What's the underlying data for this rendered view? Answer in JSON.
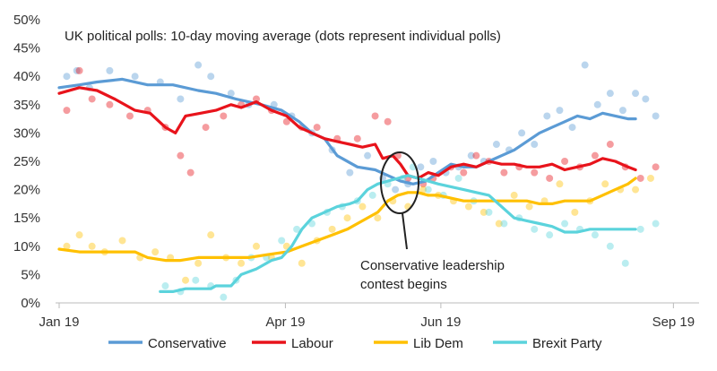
{
  "chart_data": {
    "type": "line",
    "title": "UK political polls: 10-day moving average (dots represent individual polls)",
    "xlabel": "",
    "ylabel": "",
    "x_ticks": [
      "Jan 19",
      "Apr 19",
      "Jun 19",
      "Sep 19"
    ],
    "y_ticks": [
      "0%",
      "5%",
      "10%",
      "15%",
      "20%",
      "25%",
      "30%",
      "35%",
      "40%",
      "45%",
      "50%"
    ],
    "ylim": [
      0,
      50
    ],
    "xlim": [
      0,
      245
    ],
    "grid": false,
    "legend_position": "bottom",
    "annotation": {
      "lines": [
        "Conservative leadership",
        "contest begins"
      ],
      "day": 142,
      "value": 21.5
    },
    "series": [
      {
        "name": "Conservative",
        "color": "#5b9bd5",
        "points": [
          [
            0,
            38
          ],
          [
            8,
            38.5
          ],
          [
            15,
            39
          ],
          [
            25,
            39.5
          ],
          [
            35,
            38.5
          ],
          [
            45,
            38.5
          ],
          [
            55,
            37.5
          ],
          [
            62,
            37
          ],
          [
            70,
            36
          ],
          [
            80,
            35
          ],
          [
            88,
            34
          ],
          [
            95,
            32
          ],
          [
            100,
            30
          ],
          [
            105,
            29
          ],
          [
            110,
            26
          ],
          [
            118,
            24
          ],
          [
            125,
            23.5
          ],
          [
            130,
            22.5
          ],
          [
            135,
            21.5
          ],
          [
            140,
            21
          ],
          [
            145,
            21.5
          ],
          [
            150,
            23
          ],
          [
            155,
            24.5
          ],
          [
            160,
            24
          ],
          [
            165,
            24
          ],
          [
            170,
            25
          ],
          [
            175,
            26
          ],
          [
            180,
            27
          ],
          [
            185,
            28.5
          ],
          [
            190,
            30
          ],
          [
            195,
            31
          ],
          [
            200,
            32
          ],
          [
            205,
            33
          ],
          [
            210,
            32.5
          ],
          [
            215,
            33.5
          ],
          [
            220,
            33
          ],
          [
            225,
            32.5
          ],
          [
            228,
            32.5
          ]
        ],
        "dots": [
          [
            3,
            40
          ],
          [
            7,
            41
          ],
          [
            12,
            38
          ],
          [
            20,
            41
          ],
          [
            30,
            40
          ],
          [
            40,
            39
          ],
          [
            48,
            36
          ],
          [
            55,
            42
          ],
          [
            60,
            40
          ],
          [
            68,
            37
          ],
          [
            75,
            35
          ],
          [
            85,
            35
          ],
          [
            92,
            33
          ],
          [
            100,
            30
          ],
          [
            108,
            27
          ],
          [
            115,
            23
          ],
          [
            122,
            26
          ],
          [
            128,
            22
          ],
          [
            133,
            20
          ],
          [
            138,
            21
          ],
          [
            143,
            24
          ],
          [
            148,
            25
          ],
          [
            153,
            23
          ],
          [
            158,
            24
          ],
          [
            163,
            26
          ],
          [
            168,
            25
          ],
          [
            173,
            28
          ],
          [
            178,
            27
          ],
          [
            183,
            30
          ],
          [
            188,
            28
          ],
          [
            193,
            33
          ],
          [
            198,
            34
          ],
          [
            203,
            31
          ],
          [
            208,
            42
          ],
          [
            213,
            35
          ],
          [
            218,
            37
          ],
          [
            223,
            34
          ],
          [
            228,
            37
          ],
          [
            232,
            36
          ],
          [
            236,
            33
          ]
        ]
      },
      {
        "name": "Labour",
        "color": "#e8131b",
        "points": [
          [
            0,
            37
          ],
          [
            8,
            38
          ],
          [
            15,
            37.5
          ],
          [
            22,
            36
          ],
          [
            30,
            34
          ],
          [
            36,
            33.5
          ],
          [
            42,
            31
          ],
          [
            46,
            30
          ],
          [
            50,
            33
          ],
          [
            56,
            33.5
          ],
          [
            62,
            34
          ],
          [
            68,
            35
          ],
          [
            72,
            34.5
          ],
          [
            78,
            35.5
          ],
          [
            84,
            34
          ],
          [
            90,
            33
          ],
          [
            95,
            31
          ],
          [
            100,
            30
          ],
          [
            105,
            29
          ],
          [
            110,
            28.5
          ],
          [
            115,
            28
          ],
          [
            120,
            27.5
          ],
          [
            125,
            28
          ],
          [
            128,
            25.5
          ],
          [
            132,
            26
          ],
          [
            135,
            24.5
          ],
          [
            138,
            22.5
          ],
          [
            142,
            22
          ],
          [
            146,
            23
          ],
          [
            150,
            22.5
          ],
          [
            155,
            24
          ],
          [
            160,
            24.5
          ],
          [
            165,
            24
          ],
          [
            170,
            25
          ],
          [
            175,
            24.5
          ],
          [
            180,
            24.5
          ],
          [
            185,
            24
          ],
          [
            190,
            24
          ],
          [
            195,
            24.5
          ],
          [
            200,
            23.5
          ],
          [
            205,
            24
          ],
          [
            210,
            24.5
          ],
          [
            215,
            25.5
          ],
          [
            220,
            25
          ],
          [
            225,
            24
          ],
          [
            228,
            23.5
          ]
        ],
        "dots": [
          [
            3,
            34
          ],
          [
            8,
            41
          ],
          [
            13,
            36
          ],
          [
            20,
            35
          ],
          [
            28,
            33
          ],
          [
            35,
            34
          ],
          [
            42,
            31
          ],
          [
            48,
            26
          ],
          [
            52,
            23
          ],
          [
            58,
            31
          ],
          [
            65,
            33
          ],
          [
            72,
            35
          ],
          [
            78,
            36
          ],
          [
            84,
            34
          ],
          [
            90,
            32
          ],
          [
            96,
            31
          ],
          [
            102,
            31
          ],
          [
            110,
            29
          ],
          [
            118,
            29
          ],
          [
            125,
            33
          ],
          [
            130,
            32
          ],
          [
            134,
            26
          ],
          [
            138,
            22
          ],
          [
            144,
            21
          ],
          [
            148,
            22
          ],
          [
            155,
            24
          ],
          [
            160,
            23
          ],
          [
            165,
            26
          ],
          [
            170,
            25
          ],
          [
            176,
            23
          ],
          [
            182,
            24
          ],
          [
            188,
            23
          ],
          [
            194,
            22
          ],
          [
            200,
            25
          ],
          [
            206,
            24
          ],
          [
            212,
            26
          ],
          [
            218,
            28
          ],
          [
            224,
            24
          ],
          [
            230,
            22
          ],
          [
            236,
            24
          ]
        ]
      },
      {
        "name": "Lib Dem",
        "color": "#ffc000",
        "points": [
          [
            0,
            9.5
          ],
          [
            8,
            9
          ],
          [
            15,
            9
          ],
          [
            22,
            9
          ],
          [
            30,
            9
          ],
          [
            35,
            8
          ],
          [
            42,
            7.5
          ],
          [
            48,
            7.5
          ],
          [
            55,
            8
          ],
          [
            62,
            8
          ],
          [
            68,
            8
          ],
          [
            75,
            8
          ],
          [
            82,
            8.5
          ],
          [
            90,
            9
          ],
          [
            96,
            10
          ],
          [
            102,
            11
          ],
          [
            108,
            12
          ],
          [
            114,
            13
          ],
          [
            120,
            14.5
          ],
          [
            126,
            16
          ],
          [
            130,
            18
          ],
          [
            134,
            19
          ],
          [
            138,
            19.5
          ],
          [
            142,
            19.5
          ],
          [
            146,
            19
          ],
          [
            150,
            19
          ],
          [
            155,
            18.5
          ],
          [
            160,
            18
          ],
          [
            165,
            18
          ],
          [
            170,
            18
          ],
          [
            175,
            18
          ],
          [
            180,
            18
          ],
          [
            185,
            18
          ],
          [
            190,
            17.5
          ],
          [
            195,
            17.5
          ],
          [
            200,
            18
          ],
          [
            205,
            18
          ],
          [
            210,
            18
          ],
          [
            215,
            19
          ],
          [
            220,
            20
          ],
          [
            225,
            21
          ],
          [
            228,
            22
          ]
        ],
        "dots": [
          [
            3,
            10
          ],
          [
            8,
            12
          ],
          [
            13,
            10
          ],
          [
            18,
            9
          ],
          [
            25,
            11
          ],
          [
            32,
            8
          ],
          [
            38,
            9
          ],
          [
            44,
            8
          ],
          [
            50,
            4
          ],
          [
            55,
            7
          ],
          [
            60,
            12
          ],
          [
            66,
            8
          ],
          [
            72,
            7
          ],
          [
            78,
            10
          ],
          [
            84,
            8
          ],
          [
            90,
            10
          ],
          [
            96,
            7
          ],
          [
            102,
            11
          ],
          [
            108,
            13
          ],
          [
            114,
            15
          ],
          [
            120,
            17
          ],
          [
            126,
            15
          ],
          [
            132,
            18
          ],
          [
            138,
            17
          ],
          [
            144,
            20
          ],
          [
            150,
            19
          ],
          [
            156,
            18
          ],
          [
            162,
            17
          ],
          [
            168,
            16
          ],
          [
            174,
            14
          ],
          [
            180,
            19
          ],
          [
            186,
            17
          ],
          [
            192,
            18
          ],
          [
            198,
            21
          ],
          [
            204,
            16
          ],
          [
            210,
            18
          ],
          [
            216,
            21
          ],
          [
            222,
            20
          ],
          [
            228,
            20
          ],
          [
            234,
            22
          ]
        ]
      },
      {
        "name": "Brexit Party",
        "color": "#5bd3dc",
        "points": [
          [
            40,
            2
          ],
          [
            45,
            2
          ],
          [
            50,
            2.5
          ],
          [
            55,
            2.5
          ],
          [
            60,
            2.5
          ],
          [
            62,
            3
          ],
          [
            68,
            3
          ],
          [
            72,
            5
          ],
          [
            78,
            6
          ],
          [
            84,
            7.5
          ],
          [
            88,
            8
          ],
          [
            92,
            10
          ],
          [
            96,
            13
          ],
          [
            100,
            15
          ],
          [
            105,
            16
          ],
          [
            110,
            17
          ],
          [
            115,
            17.5
          ],
          [
            118,
            18
          ],
          [
            122,
            20
          ],
          [
            126,
            21
          ],
          [
            130,
            21.5
          ],
          [
            134,
            22
          ],
          [
            138,
            22.5
          ],
          [
            142,
            22
          ],
          [
            146,
            21.5
          ],
          [
            150,
            21
          ],
          [
            155,
            20.5
          ],
          [
            160,
            20
          ],
          [
            165,
            19.5
          ],
          [
            170,
            19
          ],
          [
            175,
            17
          ],
          [
            180,
            15
          ],
          [
            185,
            14.5
          ],
          [
            190,
            14
          ],
          [
            195,
            13.5
          ],
          [
            200,
            12.5
          ],
          [
            205,
            12.5
          ],
          [
            210,
            13
          ],
          [
            215,
            13
          ],
          [
            220,
            13
          ],
          [
            225,
            13
          ],
          [
            228,
            13
          ]
        ],
        "dots": [
          [
            42,
            3
          ],
          [
            48,
            2
          ],
          [
            54,
            4
          ],
          [
            60,
            3
          ],
          [
            65,
            1
          ],
          [
            70,
            4
          ],
          [
            76,
            8
          ],
          [
            82,
            8
          ],
          [
            88,
            11
          ],
          [
            94,
            13
          ],
          [
            100,
            14
          ],
          [
            106,
            16
          ],
          [
            112,
            17
          ],
          [
            118,
            18
          ],
          [
            124,
            19
          ],
          [
            130,
            21
          ],
          [
            136,
            22
          ],
          [
            140,
            24
          ],
          [
            146,
            20
          ],
          [
            152,
            19
          ],
          [
            158,
            22
          ],
          [
            164,
            18
          ],
          [
            170,
            16
          ],
          [
            176,
            14
          ],
          [
            182,
            15
          ],
          [
            188,
            13
          ],
          [
            194,
            12
          ],
          [
            200,
            14
          ],
          [
            206,
            13
          ],
          [
            212,
            12
          ],
          [
            218,
            10
          ],
          [
            224,
            7
          ],
          [
            230,
            13
          ],
          [
            236,
            14
          ]
        ]
      }
    ]
  }
}
